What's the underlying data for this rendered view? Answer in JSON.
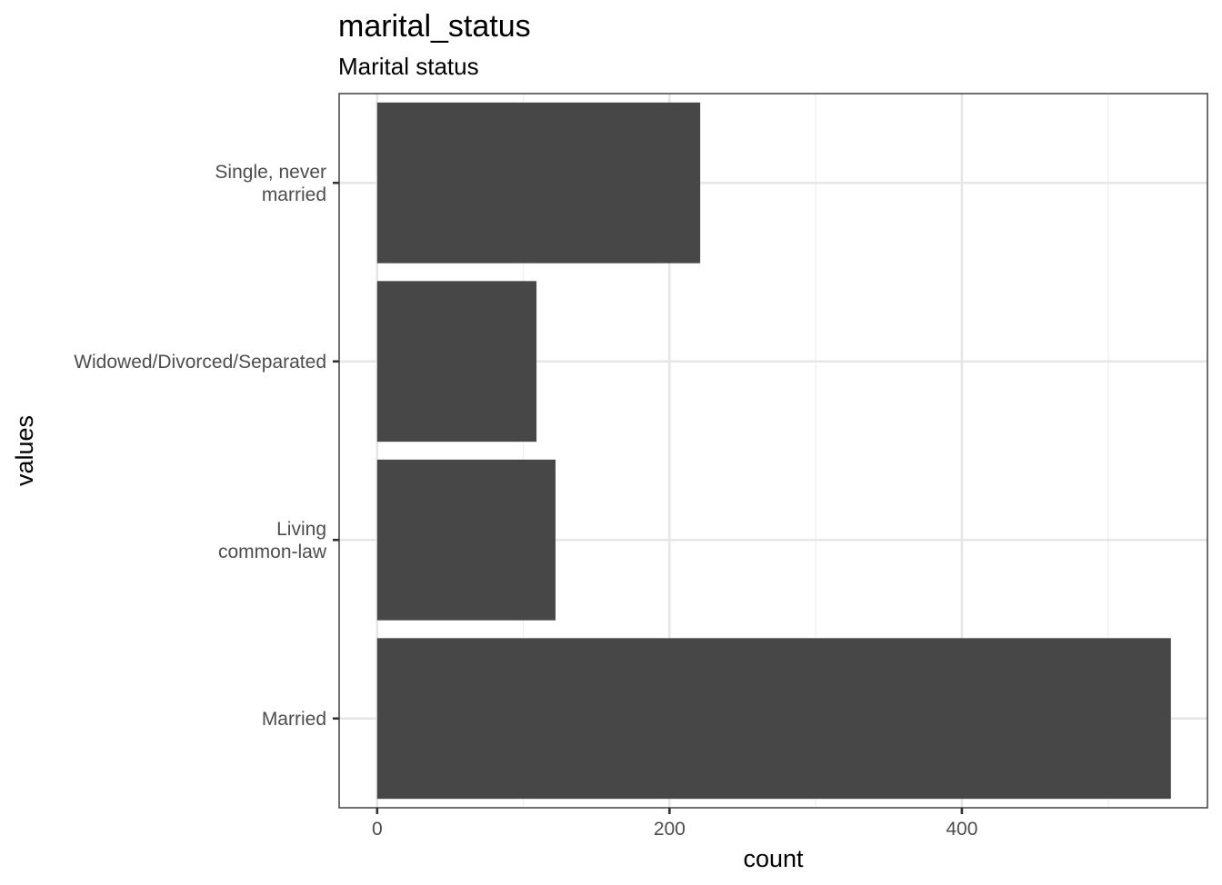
{
  "chart_data": {
    "type": "bar",
    "orientation": "horizontal",
    "title": "marital_status",
    "subtitle": "Marital status",
    "xlabel": "count",
    "ylabel": "values",
    "categories": [
      "Married",
      "Living\ncommon-law",
      "Widowed/Divorced/Separated",
      "Single, never\nmarried"
    ],
    "values": [
      543,
      122,
      109,
      221
    ],
    "xlim": [
      -26,
      568
    ],
    "xticks": [
      0,
      200,
      400
    ],
    "xtick_labels": [
      "0",
      "200",
      "400"
    ],
    "grid": true,
    "bar_color": "#474747"
  }
}
